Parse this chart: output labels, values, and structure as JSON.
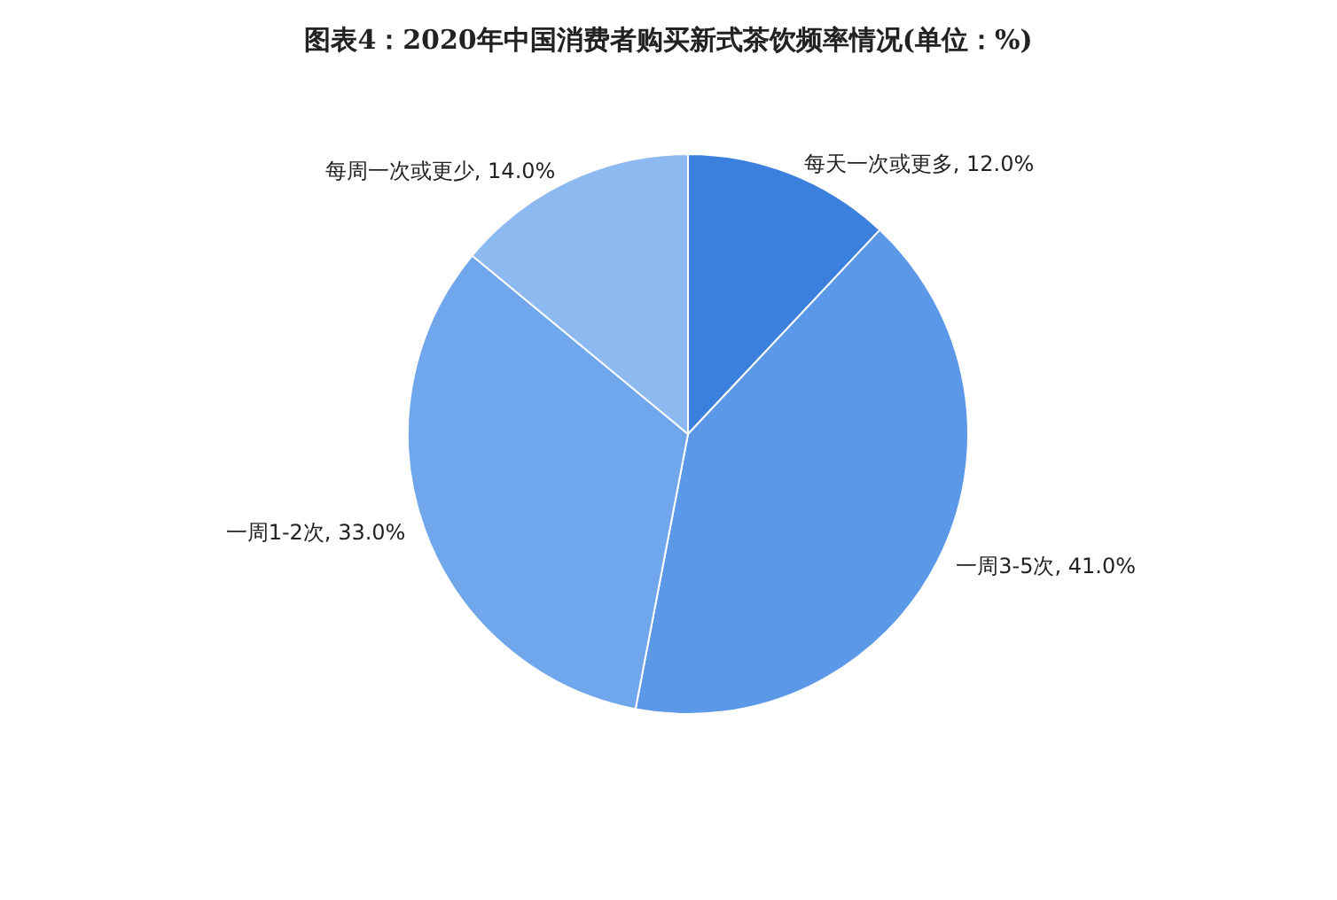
{
  "chart_data": {
    "type": "pie",
    "title": "图表4：2020年中国消费者购买新式茶饮频率情况(单位：%)",
    "categories": [
      "每天一次或更多",
      "一周3-5次",
      "一周1-2次",
      "每周一次或更少"
    ],
    "values": [
      12,
      41,
      33,
      14
    ],
    "value_labels": [
      "12.0%",
      "41.0%",
      "33.0%",
      "14.0%"
    ],
    "colors": [
      "#3b80dd",
      "#5b98e7",
      "#70a6eb",
      "#8db9f1"
    ],
    "legend": false
  }
}
